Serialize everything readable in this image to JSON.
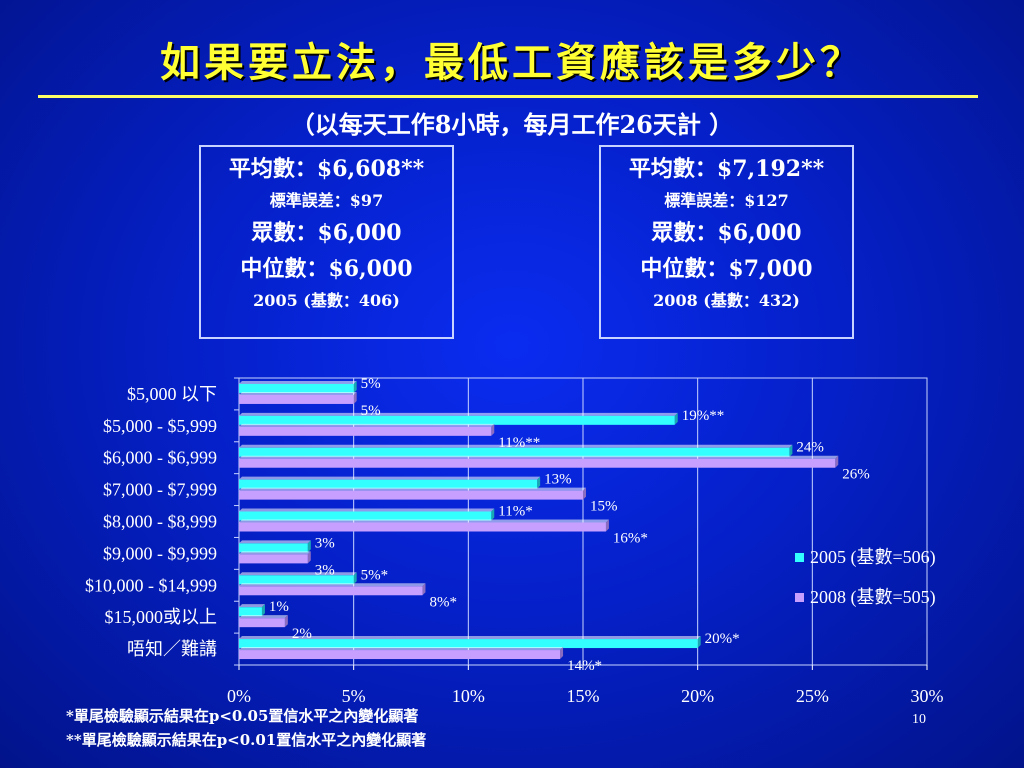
{
  "title": "如果要立法，最低工資應該是多少？",
  "subtitle": "（以每天工作8小時，每月工作26天計 ）",
  "box_2005": {
    "mean": "平均數：$6,608**",
    "se": "標準誤差：$97",
    "mode": "眾數：$6,000",
    "median": "中位數：$6,000",
    "base": "2005 (基數：406)"
  },
  "box_2008": {
    "mean": "平均數：$7,192**",
    "se": "標準誤差：$127",
    "mode": "眾數：$6,000",
    "median": "中位數：$7,000",
    "base": "2008 (基數：432)"
  },
  "footnotes": {
    "fn1": "*單尾檢驗顯示結果在p<0.05置信水平之內變化顯著",
    "fn2": "**單尾檢驗顯示結果在p<0.01置信水平之內變化顯著"
  },
  "slide_number": "10",
  "colors": {
    "bar_2005": "#33ffff",
    "bar_2008": "#c7a0ff",
    "title": "#ffff33"
  },
  "chart_data": {
    "type": "bar",
    "orientation": "horizontal",
    "categories": [
      "$5,000 以下",
      "$5,000 - $5,999",
      "$6,000 - $6,999",
      "$7,000 - $7,999",
      "$8,000 - $8,999",
      "$9,000 - $9,999",
      "$10,000 - $14,999",
      "$15,000或以上",
      "唔知／難講"
    ],
    "series": [
      {
        "name": "2005 (基數=506)",
        "values": [
          5,
          19,
          24,
          13,
          11,
          3,
          5,
          1,
          20
        ],
        "labels": [
          "5%",
          "19%**",
          "24%",
          "13%",
          "11%*",
          "3%",
          "5%*",
          "1%",
          "20%*"
        ]
      },
      {
        "name": "2008 (基數=505)",
        "values": [
          5,
          11,
          26,
          15,
          16,
          3,
          8,
          2,
          14
        ],
        "labels": [
          "5%",
          "11%**",
          "26%",
          "15%",
          "16%*",
          "3%",
          "8%*",
          "2%",
          "14%*"
        ]
      }
    ],
    "xlim": [
      0,
      30
    ],
    "xticks": [
      "0%",
      "5%",
      "10%",
      "15%",
      "20%",
      "25%",
      "30%"
    ],
    "legend_position": "right"
  }
}
